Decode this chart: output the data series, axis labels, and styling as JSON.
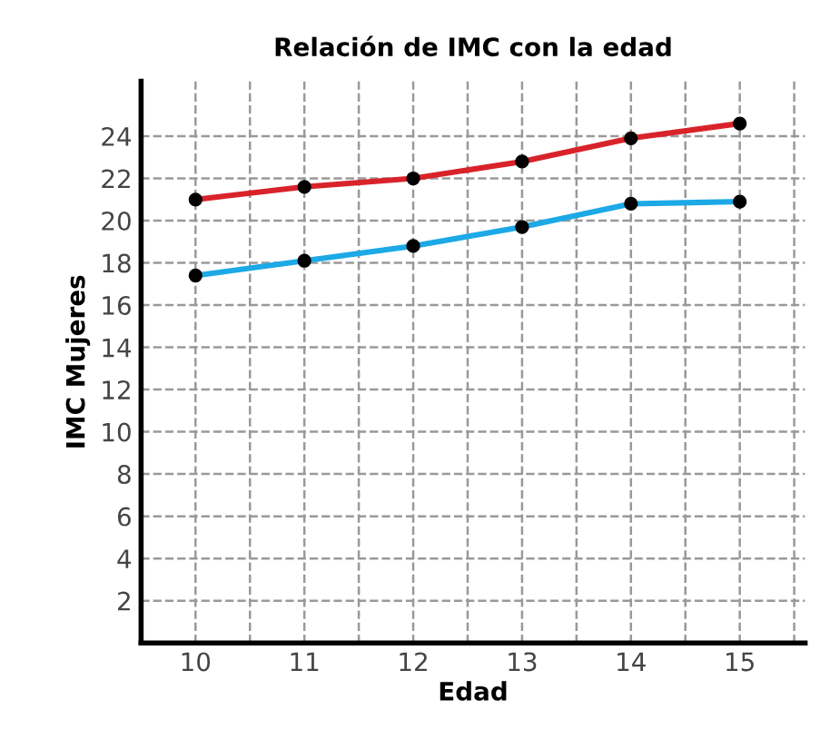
{
  "chart_data": {
    "type": "line",
    "title": "Relación de IMC con la edad",
    "xlabel": "Edad",
    "ylabel": "IMC Mujeres",
    "x": [
      10,
      11,
      12,
      13,
      14,
      15
    ],
    "series": [
      {
        "color": "#d8232a",
        "values": [
          21,
          21.6,
          22,
          22.8,
          23.9,
          24.6
        ]
      },
      {
        "color": "#1ca9e6",
        "values": [
          17.4,
          18.1,
          18.8,
          19.7,
          20.8,
          20.9
        ]
      }
    ],
    "xlim": [
      9.5,
      15.6
    ],
    "ylim": [
      0,
      26.6
    ],
    "xticks": [
      10,
      {
        "value": 10.5,
        "label": null
      },
      11,
      {
        "value": 11.5,
        "label": null
      },
      12,
      {
        "value": 12.5,
        "label": null
      },
      13,
      {
        "value": 13.5,
        "label": null
      },
      14,
      {
        "value": 14.5,
        "label": null
      },
      15,
      {
        "value": 15.5,
        "label": null
      }
    ],
    "yticks": [
      2,
      4,
      6,
      8,
      10,
      12,
      14,
      16,
      18,
      20,
      22,
      24
    ],
    "grid": true,
    "marker": "circle",
    "line_style": "solid",
    "legend": false
  }
}
